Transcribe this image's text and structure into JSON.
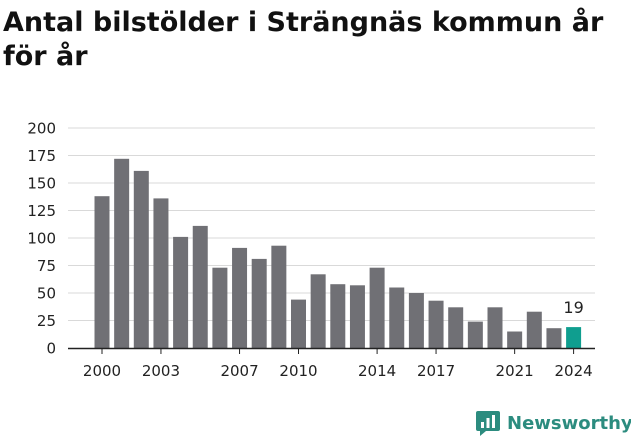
{
  "chart_data": {
    "type": "bar",
    "title": "Antal bilstölder i Strängnäs kommun år för år",
    "categories": [
      "2000",
      "2001",
      "2002",
      "2003",
      "2004",
      "2005",
      "2006",
      "2007",
      "2008",
      "2009",
      "2010",
      "2011",
      "2012",
      "2013",
      "2014",
      "2015",
      "2016",
      "2017",
      "2018",
      "2019",
      "2020",
      "2021",
      "2022",
      "2023",
      "2024"
    ],
    "values": [
      138,
      172,
      161,
      136,
      101,
      111,
      73,
      91,
      81,
      93,
      44,
      67,
      58,
      57,
      73,
      55,
      50,
      43,
      37,
      24,
      37,
      15,
      33,
      18,
      19
    ],
    "x_tick_labels": [
      "2000",
      "2003",
      "2007",
      "2010",
      "2014",
      "2017",
      "2021",
      "2024"
    ],
    "y_ticks": [
      0,
      25,
      50,
      75,
      100,
      125,
      150,
      175,
      200
    ],
    "ylim": [
      0,
      200
    ],
    "xlabel": "",
    "ylabel": "",
    "grid": true,
    "highlight": {
      "category": "2024",
      "label": "19"
    },
    "colors": {
      "bar": "#707075",
      "highlight": "#0f9e8f",
      "grid": "#d9d9d9",
      "axis": "#222222"
    }
  },
  "brand": {
    "name": "Newsworthy",
    "icon": "newsworthy-logo-icon",
    "color": "#2c8c7f"
  }
}
